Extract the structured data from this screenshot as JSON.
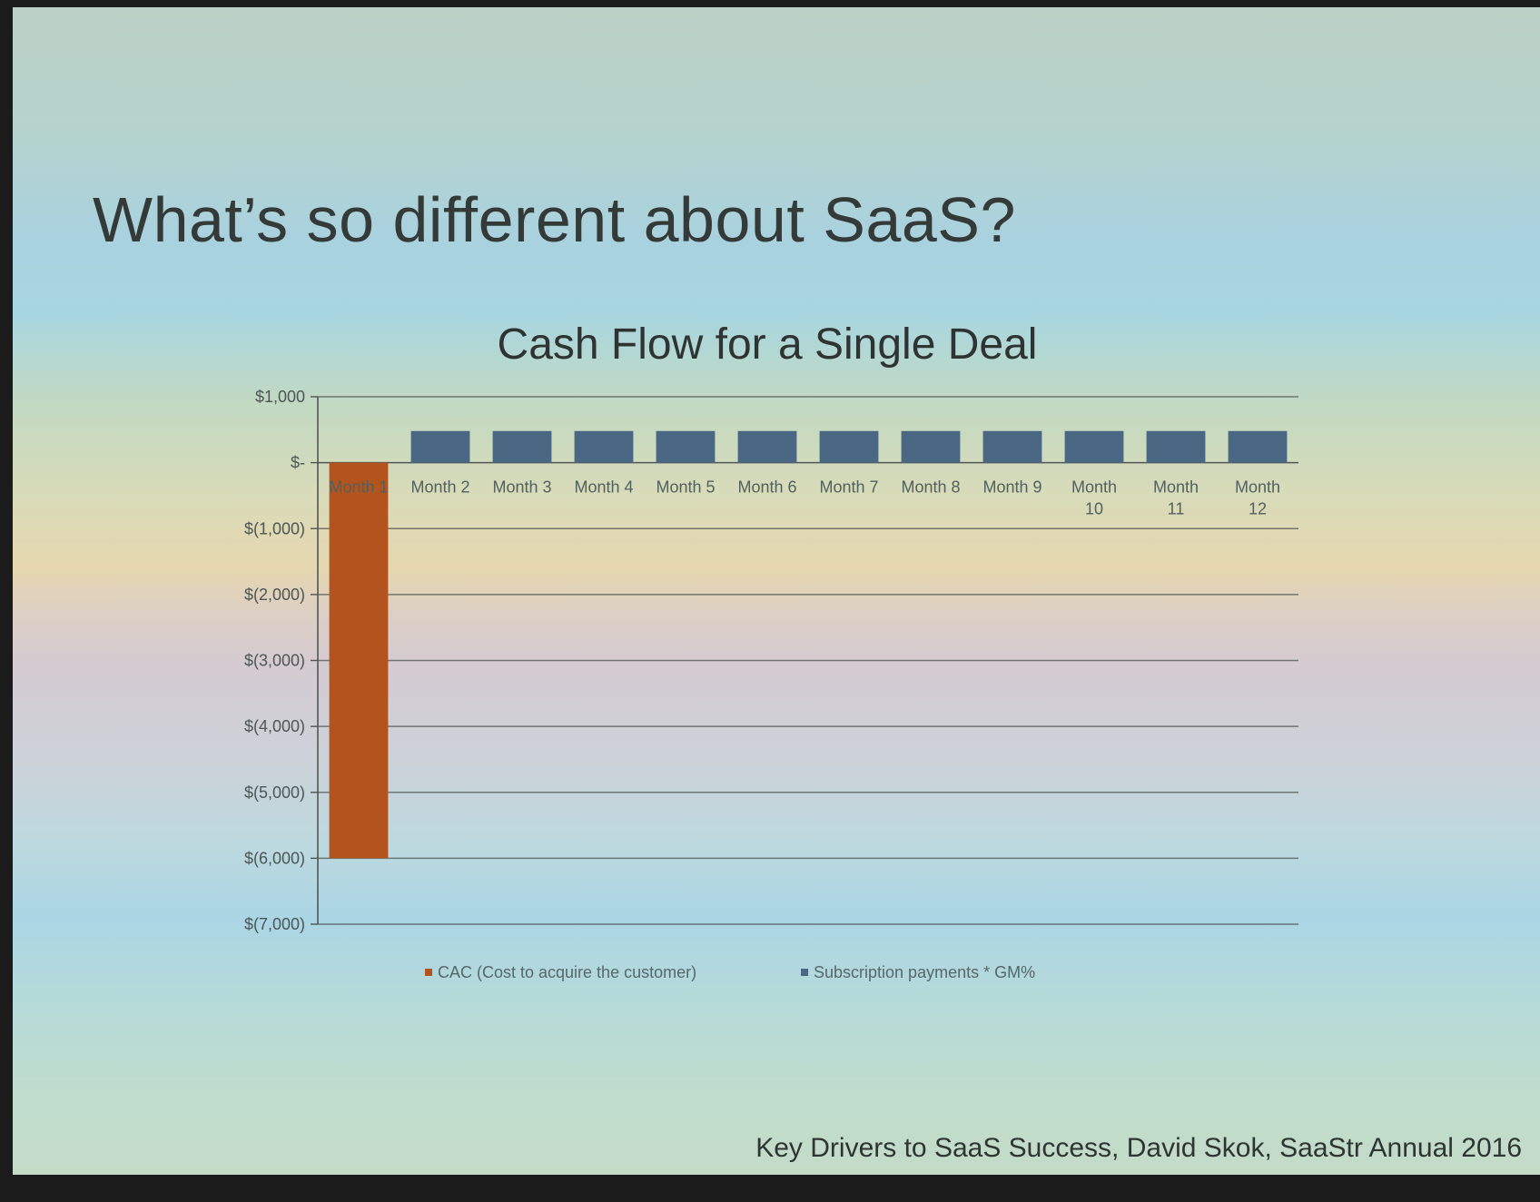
{
  "slide": {
    "title": "What’s so different about SaaS?",
    "footer": "Key Drivers to SaaS Success, David Skok, SaaStr Annual 2016"
  },
  "colors": {
    "cac": "#b3541e",
    "subscription": "#4a6784",
    "axis": "#4f5653",
    "grid": "#4f5653"
  },
  "chart_data": {
    "type": "bar",
    "title": "Cash Flow for a Single Deal",
    "categories": [
      "Month 1",
      "Month 2",
      "Month 3",
      "Month 4",
      "Month 5",
      "Month 6",
      "Month 7",
      "Month 8",
      "Month 9",
      "Month 10",
      "Month 11",
      "Month 12"
    ],
    "series": [
      {
        "name": "CAC (Cost to acquire the customer)",
        "color": "#b3541e",
        "values": [
          -6000,
          0,
          0,
          0,
          0,
          0,
          0,
          0,
          0,
          0,
          0,
          0
        ]
      },
      {
        "name": "Subscription payments * GM%",
        "color": "#4a6784",
        "values": [
          0,
          480,
          480,
          480,
          480,
          480,
          480,
          480,
          480,
          480,
          480,
          480
        ]
      }
    ],
    "ylim": [
      -7000,
      1000
    ],
    "yticks": [
      1000,
      0,
      -1000,
      -2000,
      -3000,
      -4000,
      -5000,
      -6000,
      -7000
    ],
    "ytick_labels": [
      "$1,000",
      "$-",
      "$(1,000)",
      "$(2,000)",
      "$(3,000)",
      "$(4,000)",
      "$(5,000)",
      "$(6,000)",
      "$(7,000)"
    ],
    "xlabel": "",
    "ylabel": "",
    "grid": true,
    "legend": "bottom"
  }
}
